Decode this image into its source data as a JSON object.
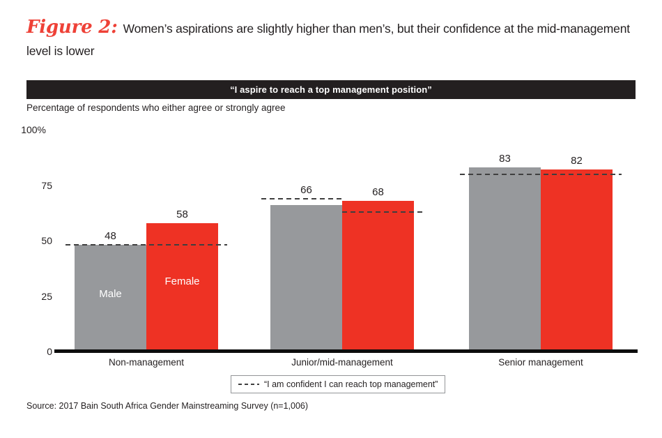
{
  "figure": {
    "label": "Figure 2:",
    "title": "Women’s aspirations are slightly higher than men’s, but their confidence at the mid-management level is lower"
  },
  "banner": {
    "text": "“I aspire to reach a top management position”"
  },
  "subtitle": "Percentage of respondents who either agree or strongly agree",
  "chart_data": {
    "type": "bar",
    "title": "“I aspire to reach a top management position”",
    "ylabel": "Percentage of respondents who either agree or strongly agree",
    "ylim": [
      0,
      100
    ],
    "grid": false,
    "categories": [
      "Non-management",
      "Junior/mid-management",
      "Senior management"
    ],
    "series": [
      {
        "name": "Male",
        "color": "#97999c",
        "values": [
          48,
          66,
          83
        ]
      },
      {
        "name": "Female",
        "color": "#ee3224",
        "values": [
          58,
          68,
          82
        ]
      }
    ],
    "bar_inner_labels": {
      "category_index": 0,
      "labels": [
        "Male",
        "Female"
      ]
    },
    "y_ticks": [
      {
        "label": "100%",
        "value": 100
      },
      {
        "label": "75",
        "value": 75
      },
      {
        "label": "50",
        "value": 50
      },
      {
        "label": "25",
        "value": 25
      },
      {
        "label": "0",
        "value": 0
      }
    ],
    "confidence_dashed_lines": [
      {
        "category": "Non-management",
        "applies_to": "both",
        "value": 48
      },
      {
        "category": "Junior/mid-management",
        "applies_to": "Male",
        "value": 69
      },
      {
        "category": "Junior/mid-management",
        "applies_to": "Female",
        "value": 63
      },
      {
        "category": "Senior management",
        "applies_to": "both",
        "value": 80
      }
    ],
    "legend_position": "bottom-center"
  },
  "legend": {
    "label": "“I am confident I can reach top management”"
  },
  "source": "Source: 2017 Bain South Africa Gender Mainstreaming Survey (n=1,006)",
  "colors": {
    "male_bar": "#97999c",
    "female_bar": "#ee3224",
    "accent_red": "#ee4137",
    "banner_bg": "#231f20",
    "dash": "#3f3f3f",
    "text": "#231f20"
  }
}
